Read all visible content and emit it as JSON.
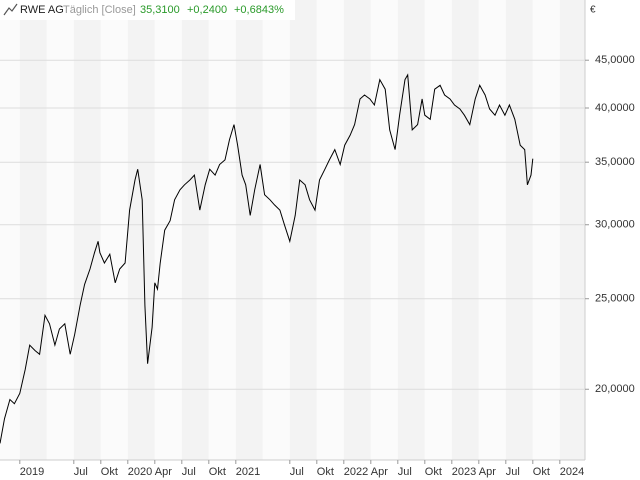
{
  "header": {
    "name": "RWE AG",
    "interval": "Täglich [Close]",
    "last": "35,3100",
    "change": "+0,2400",
    "change_pct": "+0,6843%"
  },
  "chart_data": {
    "type": "line",
    "currency": "€",
    "log_scale": true,
    "grid": true,
    "color": "#000000",
    "xlim": [
      -2.2,
      62.8
    ],
    "ylim": [
      16.8,
      52.2
    ],
    "xticks": [
      {
        "value": 0,
        "label": "2019"
      },
      {
        "value": 6,
        "label": "Jul"
      },
      {
        "value": 9,
        "label": "Okt"
      },
      {
        "value": 12,
        "label": "2020"
      },
      {
        "value": 15,
        "label": "Apr"
      },
      {
        "value": 18,
        "label": "Jul"
      },
      {
        "value": 21,
        "label": "Okt"
      },
      {
        "value": 24,
        "label": "2021"
      },
      {
        "value": 30,
        "label": "Jul"
      },
      {
        "value": 33,
        "label": "Okt"
      },
      {
        "value": 36,
        "label": "2022"
      },
      {
        "value": 39,
        "label": "Apr"
      },
      {
        "value": 42,
        "label": "Jul"
      },
      {
        "value": 45,
        "label": "Okt"
      },
      {
        "value": 48,
        "label": "2023"
      },
      {
        "value": 51,
        "label": "Apr"
      },
      {
        "value": 54,
        "label": "Jul"
      },
      {
        "value": 57,
        "label": "Okt"
      },
      {
        "value": 60,
        "label": "2024"
      }
    ],
    "yticks": [
      {
        "value": 20,
        "label": "20,0000"
      },
      {
        "value": 25,
        "label": "25,0000"
      },
      {
        "value": 30,
        "label": "30,0000"
      },
      {
        "value": 35,
        "label": "35,0000"
      },
      {
        "value": 40,
        "label": "40,0000"
      },
      {
        "value": 45,
        "label": "45,0000"
      }
    ],
    "x": [
      -2.2,
      -1.7,
      -1.1,
      -0.6,
      0,
      0.6,
      1.1,
      1.7,
      2.2,
      2.8,
      3.3,
      3.9,
      4.4,
      5,
      5.6,
      6.1,
      6.7,
      7.2,
      7.8,
      8.3,
      8.7,
      8.9,
      9.4,
      10,
      10.6,
      11.1,
      11.7,
      12.2,
      12.8,
      13.1,
      13.6,
      13.9,
      14.2,
      14.7,
      15,
      15.3,
      15.6,
      16.1,
      16.7,
      17.2,
      17.8,
      18.3,
      18.9,
      19.4,
      20,
      20.6,
      21.1,
      21.7,
      22.2,
      22.8,
      23.3,
      23.8,
      24.2,
      24.7,
      25.1,
      25.6,
      26.1,
      26.7,
      27.2,
      27.8,
      28.3,
      28.9,
      29.4,
      30,
      30.6,
      31.1,
      31.7,
      32.2,
      32.8,
      33.3,
      33.9,
      34.4,
      35,
      35.6,
      36.1,
      36.7,
      37.2,
      37.8,
      38.3,
      38.9,
      39.4,
      40,
      40.6,
      41.1,
      41.7,
      42.2,
      42.8,
      43.1,
      43.6,
      44.2,
      44.7,
      45,
      45.6,
      46.1,
      46.7,
      47.2,
      47.8,
      48.3,
      48.9,
      49.4,
      50,
      50.6,
      51.1,
      51.7,
      52.2,
      52.8,
      53.3,
      53.9,
      54.4,
      55,
      55.6,
      56.1,
      56.4,
      56.8,
      57
    ],
    "values": [
      17.5,
      18.6,
      19.5,
      19.3,
      19.8,
      21.0,
      22.3,
      22.0,
      21.8,
      24.0,
      23.5,
      22.3,
      23.2,
      23.5,
      21.8,
      22.9,
      24.6,
      25.9,
      26.9,
      28.0,
      28.8,
      28.0,
      27.3,
      27.9,
      26.0,
      26.9,
      27.3,
      31.1,
      33.5,
      34.4,
      31.9,
      24.6,
      21.3,
      23.3,
      26.0,
      25.6,
      27.3,
      29.6,
      30.3,
      31.9,
      32.7,
      33.1,
      33.5,
      33.9,
      31.1,
      33.1,
      34.4,
      33.9,
      34.8,
      35.2,
      37.0,
      38.4,
      36.5,
      33.9,
      33.1,
      30.7,
      32.7,
      34.8,
      32.3,
      31.9,
      31.5,
      31.1,
      30.0,
      28.8,
      30.7,
      33.5,
      33.1,
      31.9,
      31.1,
      33.5,
      34.4,
      35.2,
      36.1,
      34.8,
      36.5,
      37.4,
      38.4,
      40.9,
      41.3,
      40.9,
      40.3,
      42.9,
      41.9,
      37.9,
      36.1,
      39.3,
      42.9,
      43.4,
      37.9,
      38.4,
      40.9,
      39.3,
      38.9,
      41.9,
      42.3,
      41.3,
      40.9,
      40.3,
      39.9,
      39.3,
      38.4,
      40.9,
      42.3,
      41.3,
      39.9,
      39.3,
      40.3,
      39.3,
      40.3,
      38.9,
      36.5,
      36.1,
      33.1,
      33.9,
      35.3
    ]
  }
}
